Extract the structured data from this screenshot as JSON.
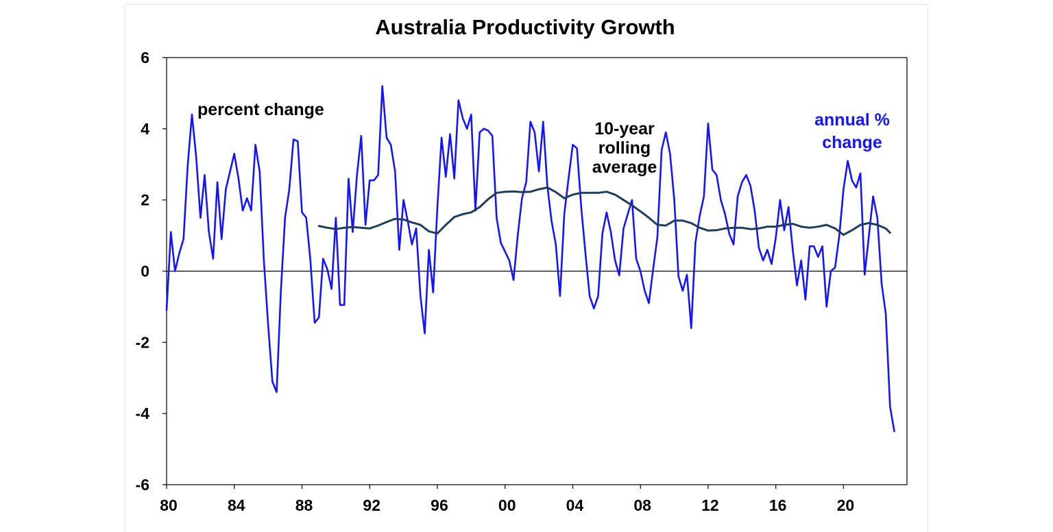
{
  "chart_data": {
    "type": "line",
    "title": "Australia Productivity Growth",
    "xlabel": "",
    "ylabel": "",
    "xlim": [
      1980,
      2023.75
    ],
    "ylim": [
      -6,
      6
    ],
    "x_tick_labels": [
      "80",
      "84",
      "88",
      "92",
      "96",
      "00",
      "04",
      "08",
      "12",
      "16",
      "20"
    ],
    "x_tick_values": [
      1980,
      1984,
      1988,
      1992,
      1996,
      2000,
      2004,
      2008,
      2012,
      2016,
      2020
    ],
    "y_ticks": [
      -6,
      -4,
      -2,
      0,
      2,
      4,
      6
    ],
    "grid": false,
    "zero_line": true,
    "annotations": {
      "percent_change": "percent change",
      "rolling_line1": "10-year",
      "rolling_line2": "rolling",
      "rolling_line3": "average",
      "annual_line1": "annual %",
      "annual_line2": "change"
    },
    "series": [
      {
        "color": "#1414ff",
        "points": [
          [
            1980.0,
            -1.1
          ],
          [
            1980.25,
            1.1
          ],
          [
            1980.5,
            0.0
          ],
          [
            1980.75,
            0.5
          ],
          [
            1981.0,
            0.9
          ],
          [
            1981.25,
            3.0
          ],
          [
            1981.5,
            4.4
          ],
          [
            1981.75,
            3.2
          ],
          [
            1982.0,
            1.5
          ],
          [
            1982.25,
            2.7
          ],
          [
            1982.5,
            1.1
          ],
          [
            1982.75,
            0.35
          ],
          [
            1983.0,
            2.5
          ],
          [
            1983.25,
            0.9
          ],
          [
            1983.5,
            2.3
          ],
          [
            1983.75,
            2.8
          ],
          [
            1984.0,
            3.3
          ],
          [
            1984.25,
            2.6
          ],
          [
            1984.5,
            1.7
          ],
          [
            1984.75,
            2.05
          ],
          [
            1985.0,
            1.7
          ],
          [
            1985.25,
            3.55
          ],
          [
            1985.5,
            2.8
          ],
          [
            1985.75,
            0.3
          ],
          [
            1986.0,
            -1.5
          ],
          [
            1986.25,
            -3.1
          ],
          [
            1986.5,
            -3.4
          ],
          [
            1986.75,
            -0.6
          ],
          [
            1987.0,
            1.5
          ],
          [
            1987.25,
            2.3
          ],
          [
            1987.5,
            3.7
          ],
          [
            1987.75,
            3.65
          ],
          [
            1988.0,
            1.65
          ],
          [
            1988.25,
            1.5
          ],
          [
            1988.5,
            0.3
          ],
          [
            1988.75,
            -1.45
          ],
          [
            1989.0,
            -1.3
          ],
          [
            1989.25,
            0.35
          ],
          [
            1989.5,
            0.05
          ],
          [
            1989.75,
            -0.5
          ],
          [
            1990.0,
            1.5
          ],
          [
            1990.25,
            -0.95
          ],
          [
            1990.5,
            -0.95
          ],
          [
            1990.75,
            2.6
          ],
          [
            1991.0,
            1.1
          ],
          [
            1991.25,
            2.7
          ],
          [
            1991.5,
            3.8
          ],
          [
            1991.75,
            1.3
          ],
          [
            1992.0,
            2.55
          ],
          [
            1992.25,
            2.55
          ],
          [
            1992.5,
            2.7
          ],
          [
            1992.75,
            5.2
          ],
          [
            1993.0,
            3.75
          ],
          [
            1993.25,
            3.55
          ],
          [
            1993.5,
            2.8
          ],
          [
            1993.75,
            0.6
          ],
          [
            1994.0,
            2.0
          ],
          [
            1994.25,
            1.4
          ],
          [
            1994.5,
            0.75
          ],
          [
            1994.75,
            1.2
          ],
          [
            1995.0,
            -0.7
          ],
          [
            1995.25,
            -1.75
          ],
          [
            1995.5,
            0.6
          ],
          [
            1995.75,
            -0.6
          ],
          [
            1996.0,
            1.8
          ],
          [
            1996.25,
            3.75
          ],
          [
            1996.5,
            2.65
          ],
          [
            1996.75,
            3.85
          ],
          [
            1997.0,
            2.6
          ],
          [
            1997.25,
            4.8
          ],
          [
            1997.5,
            4.3
          ],
          [
            1997.75,
            4.0
          ],
          [
            1998.0,
            4.4
          ],
          [
            1998.25,
            1.7
          ],
          [
            1998.5,
            3.9
          ],
          [
            1998.75,
            4.0
          ],
          [
            1999.0,
            3.95
          ],
          [
            1999.25,
            3.8
          ],
          [
            1999.5,
            1.5
          ],
          [
            1999.75,
            0.8
          ],
          [
            2000.0,
            0.55
          ],
          [
            2000.25,
            0.3
          ],
          [
            2000.5,
            -0.25
          ],
          [
            2000.75,
            1.0
          ],
          [
            2001.0,
            2.05
          ],
          [
            2001.25,
            2.5
          ],
          [
            2001.5,
            4.2
          ],
          [
            2001.75,
            3.9
          ],
          [
            2002.0,
            2.8
          ],
          [
            2002.25,
            4.2
          ],
          [
            2002.5,
            2.4
          ],
          [
            2002.75,
            1.4
          ],
          [
            2003.0,
            0.75
          ],
          [
            2003.25,
            -0.7
          ],
          [
            2003.5,
            1.6
          ],
          [
            2003.75,
            2.6
          ],
          [
            2004.0,
            3.55
          ],
          [
            2004.25,
            3.45
          ],
          [
            2004.5,
            1.8
          ],
          [
            2004.75,
            0.5
          ],
          [
            2005.0,
            -0.7
          ],
          [
            2005.25,
            -1.05
          ],
          [
            2005.5,
            -0.7
          ],
          [
            2005.75,
            1.05
          ],
          [
            2006.0,
            1.65
          ],
          [
            2006.25,
            1.1
          ],
          [
            2006.5,
            0.3
          ],
          [
            2006.75,
            -0.12
          ],
          [
            2007.0,
            1.2
          ],
          [
            2007.25,
            1.6
          ],
          [
            2007.5,
            2.0
          ],
          [
            2007.75,
            0.35
          ],
          [
            2008.0,
            0.0
          ],
          [
            2008.25,
            -0.55
          ],
          [
            2008.5,
            -0.9
          ],
          [
            2008.75,
            0.05
          ],
          [
            2009.0,
            0.95
          ],
          [
            2009.25,
            3.4
          ],
          [
            2009.5,
            3.9
          ],
          [
            2009.75,
            3.3
          ],
          [
            2010.0,
            2.0
          ],
          [
            2010.25,
            -0.15
          ],
          [
            2010.5,
            -0.55
          ],
          [
            2010.75,
            -0.1
          ],
          [
            2011.0,
            -1.6
          ],
          [
            2011.25,
            0.8
          ],
          [
            2011.5,
            1.55
          ],
          [
            2011.75,
            2.1
          ],
          [
            2012.0,
            4.15
          ],
          [
            2012.25,
            2.85
          ],
          [
            2012.5,
            2.7
          ],
          [
            2012.75,
            2.0
          ],
          [
            2013.0,
            1.6
          ],
          [
            2013.25,
            1.05
          ],
          [
            2013.5,
            0.75
          ],
          [
            2013.75,
            2.1
          ],
          [
            2014.0,
            2.5
          ],
          [
            2014.25,
            2.7
          ],
          [
            2014.5,
            2.4
          ],
          [
            2014.75,
            1.7
          ],
          [
            2015.0,
            0.65
          ],
          [
            2015.25,
            0.3
          ],
          [
            2015.5,
            0.6
          ],
          [
            2015.75,
            0.2
          ],
          [
            2016.0,
            0.95
          ],
          [
            2016.25,
            2.0
          ],
          [
            2016.5,
            1.15
          ],
          [
            2016.75,
            1.8
          ],
          [
            2017.0,
            0.6
          ],
          [
            2017.25,
            -0.4
          ],
          [
            2017.5,
            0.3
          ],
          [
            2017.75,
            -0.8
          ],
          [
            2018.0,
            0.7
          ],
          [
            2018.25,
            0.7
          ],
          [
            2018.5,
            0.4
          ],
          [
            2018.75,
            0.7
          ],
          [
            2019.0,
            -1.0
          ],
          [
            2019.25,
            0.0
          ],
          [
            2019.5,
            0.1
          ],
          [
            2019.75,
            1.0
          ],
          [
            2020.0,
            2.3
          ],
          [
            2020.25,
            3.1
          ],
          [
            2020.5,
            2.55
          ],
          [
            2020.75,
            2.35
          ],
          [
            2021.0,
            2.75
          ],
          [
            2021.25,
            -0.1
          ],
          [
            2021.5,
            1.0
          ],
          [
            2021.75,
            2.1
          ],
          [
            2022.0,
            1.5
          ],
          [
            2022.25,
            -0.35
          ],
          [
            2022.5,
            -1.2
          ],
          [
            2022.75,
            -3.8
          ],
          [
            2023.0,
            -4.5
          ]
        ]
      },
      {
        "color": "#1f3c5a",
        "points": [
          [
            1989.0,
            1.27
          ],
          [
            1989.5,
            1.22
          ],
          [
            1990.0,
            1.18
          ],
          [
            1990.5,
            1.22
          ],
          [
            1991.0,
            1.24
          ],
          [
            1991.5,
            1.22
          ],
          [
            1992.0,
            1.2
          ],
          [
            1992.5,
            1.28
          ],
          [
            1993.0,
            1.38
          ],
          [
            1993.5,
            1.47
          ],
          [
            1994.0,
            1.45
          ],
          [
            1994.5,
            1.37
          ],
          [
            1995.0,
            1.3
          ],
          [
            1995.5,
            1.12
          ],
          [
            1996.0,
            1.06
          ],
          [
            1996.5,
            1.3
          ],
          [
            1997.0,
            1.52
          ],
          [
            1997.5,
            1.6
          ],
          [
            1998.0,
            1.65
          ],
          [
            1998.5,
            1.8
          ],
          [
            1999.0,
            2.02
          ],
          [
            1999.5,
            2.2
          ],
          [
            2000.0,
            2.23
          ],
          [
            2000.5,
            2.24
          ],
          [
            2001.0,
            2.22
          ],
          [
            2001.5,
            2.23
          ],
          [
            2002.0,
            2.3
          ],
          [
            2002.5,
            2.35
          ],
          [
            2003.0,
            2.22
          ],
          [
            2003.5,
            2.05
          ],
          [
            2004.0,
            2.15
          ],
          [
            2004.5,
            2.2
          ],
          [
            2005.0,
            2.2
          ],
          [
            2005.5,
            2.2
          ],
          [
            2006.0,
            2.23
          ],
          [
            2006.5,
            2.15
          ],
          [
            2007.0,
            2.0
          ],
          [
            2007.5,
            1.85
          ],
          [
            2008.0,
            1.68
          ],
          [
            2008.5,
            1.5
          ],
          [
            2009.0,
            1.3
          ],
          [
            2009.5,
            1.28
          ],
          [
            2010.0,
            1.42
          ],
          [
            2010.5,
            1.42
          ],
          [
            2011.0,
            1.35
          ],
          [
            2011.5,
            1.22
          ],
          [
            2012.0,
            1.14
          ],
          [
            2012.5,
            1.15
          ],
          [
            2013.0,
            1.2
          ],
          [
            2013.5,
            1.22
          ],
          [
            2014.0,
            1.22
          ],
          [
            2014.5,
            1.18
          ],
          [
            2015.0,
            1.2
          ],
          [
            2015.5,
            1.25
          ],
          [
            2016.0,
            1.25
          ],
          [
            2016.5,
            1.3
          ],
          [
            2017.0,
            1.33
          ],
          [
            2017.5,
            1.25
          ],
          [
            2018.0,
            1.22
          ],
          [
            2018.5,
            1.25
          ],
          [
            2019.0,
            1.3
          ],
          [
            2019.5,
            1.2
          ],
          [
            2020.0,
            1.02
          ],
          [
            2020.5,
            1.15
          ],
          [
            2021.0,
            1.3
          ],
          [
            2021.5,
            1.35
          ],
          [
            2022.0,
            1.3
          ],
          [
            2022.5,
            1.2
          ],
          [
            2022.75,
            1.08
          ]
        ]
      }
    ]
  }
}
